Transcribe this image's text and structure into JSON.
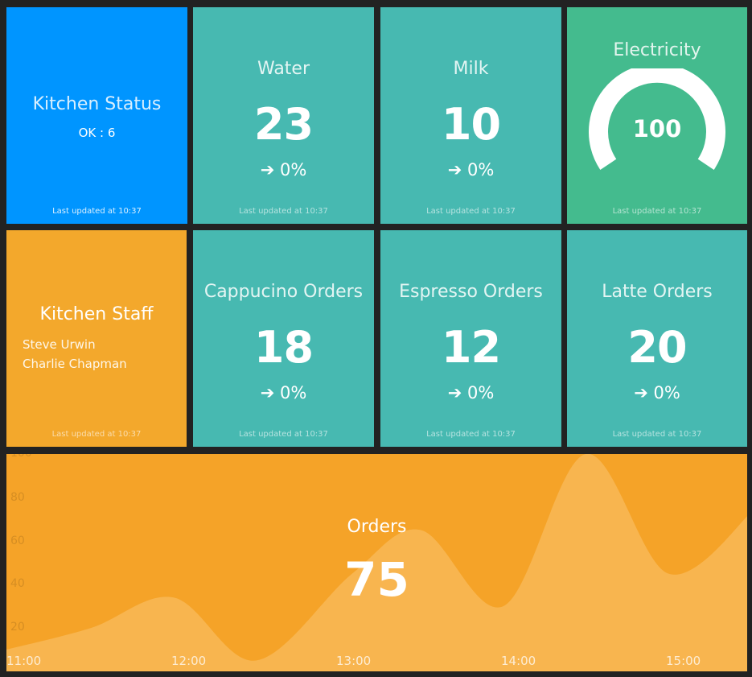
{
  "kitchen_status": {
    "title": "Kitchen Status",
    "detail": "OK : 6",
    "updated": "Last updated at 10:37"
  },
  "water": {
    "title": "Water",
    "value": "23",
    "change": "0%",
    "updated": "Last updated at 10:37"
  },
  "milk": {
    "title": "Milk",
    "value": "10",
    "change": "0%",
    "updated": "Last updated at 10:37"
  },
  "electricity": {
    "title": "Electricity",
    "value": "100",
    "gauge_fraction": 1.0,
    "updated": "Last updated at 10:37"
  },
  "kitchen_staff": {
    "title": "Kitchen Staff",
    "members": [
      "Steve Urwin",
      "Charlie Chapman"
    ],
    "updated": "Last updated at 10:37"
  },
  "cappucino": {
    "title": "Cappucino Orders",
    "value": "18",
    "change": "0%",
    "updated": "Last updated at 10:37"
  },
  "espresso": {
    "title": "Espresso Orders",
    "value": "12",
    "change": "0%",
    "updated": "Last updated at 10:37"
  },
  "latte": {
    "title": "Latte Orders",
    "value": "20",
    "change": "0%",
    "updated": "Last updated at 10:37"
  },
  "orders": {
    "title": "Orders",
    "value": "75",
    "y_ticks": [
      "100",
      "80",
      "60",
      "40",
      "20"
    ],
    "x_ticks": [
      "11:00",
      "12:00",
      "13:00",
      "14:00",
      "15:00"
    ]
  },
  "colors": {
    "background": "#222222",
    "status_blue": "#0095ff",
    "teal": "#47b9b1",
    "green": "#44bb8e",
    "orange": "#f3a82c",
    "orders_orange": "#f5a328",
    "area_fill": "#f8b54f"
  },
  "chart_data": {
    "type": "area",
    "title": "Orders",
    "xlabel": "",
    "ylabel": "",
    "x_ticks": [
      "11:00",
      "12:00",
      "13:00",
      "14:00",
      "15:00"
    ],
    "y_ticks": [
      20,
      40,
      60,
      80,
      100
    ],
    "ylim": [
      0,
      100
    ],
    "grid": false,
    "points": [
      {
        "x": "11:00",
        "y": 10
      },
      {
        "x": "11:25",
        "y": 20
      },
      {
        "x": "11:55",
        "y": 34
      },
      {
        "x": "12:25",
        "y": 5
      },
      {
        "x": "13:00",
        "y": 45
      },
      {
        "x": "13:25",
        "y": 65
      },
      {
        "x": "13:55",
        "y": 30
      },
      {
        "x": "14:25",
        "y": 100
      },
      {
        "x": "14:55",
        "y": 45
      },
      {
        "x": "15:25",
        "y": 73
      }
    ]
  }
}
